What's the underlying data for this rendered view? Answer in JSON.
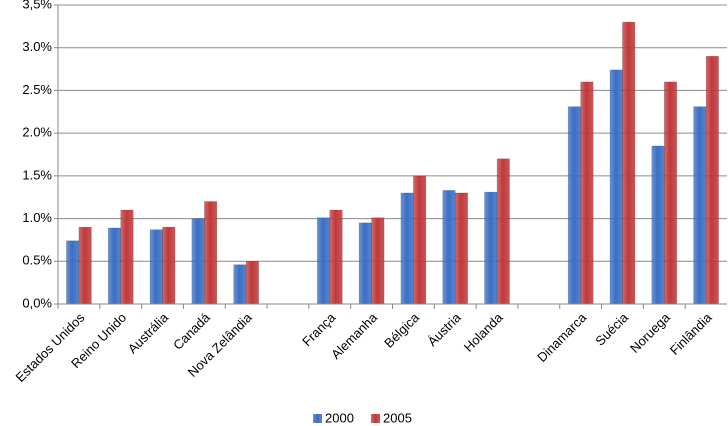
{
  "chart_data": {
    "type": "bar",
    "categories": [
      "Estados Unidos",
      "Reino Unido",
      "Austrália",
      "Canadá",
      "Nova Zelândia",
      null,
      "França",
      "Alemanha",
      "Bélgica",
      "Áustria",
      "Holanda",
      null,
      "Dinamarca",
      "Suécia",
      "Noruega",
      "Finlândia"
    ],
    "series": [
      {
        "name": "2000",
        "color": "#3a6fc4",
        "values": [
          0.74,
          0.89,
          0.87,
          1.0,
          0.46,
          null,
          1.01,
          0.95,
          1.3,
          1.33,
          1.31,
          null,
          2.31,
          2.74,
          1.85,
          2.31
        ]
      },
      {
        "name": "2005",
        "color": "#c0393b",
        "values": [
          0.9,
          1.1,
          0.9,
          1.2,
          0.5,
          null,
          1.1,
          1.01,
          1.5,
          1.3,
          1.7,
          null,
          2.6,
          3.3,
          2.6,
          2.9
        ]
      }
    ],
    "ylim": [
      0,
      3.5
    ],
    "yticks": [
      {
        "value": 0,
        "label": "0,0%"
      },
      {
        "value": 0.5,
        "label": "0.5%"
      },
      {
        "value": 1,
        "label": "1.0%"
      },
      {
        "value": 1.5,
        "label": "1.5%"
      },
      {
        "value": 2,
        "label": "2.0%"
      },
      {
        "value": 2.5,
        "label": "2.5%"
      },
      {
        "value": 3,
        "label": "3.0%"
      },
      {
        "value": 3.5,
        "label": "3,5%"
      }
    ],
    "grid": true,
    "legend": "bottom"
  }
}
